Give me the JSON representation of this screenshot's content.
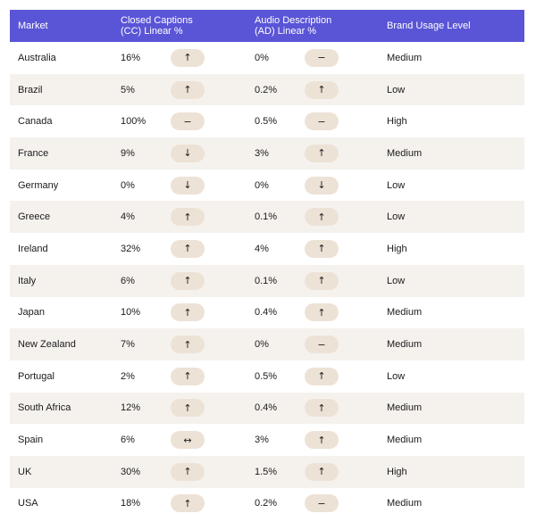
{
  "headers": {
    "market": "Market",
    "cc_line1": "Closed Captions",
    "cc_line2": "(CC) Linear %",
    "ad_line1": "Audio Description",
    "ad_line2": "(AD) Linear %",
    "brand": "Brand Usage Level"
  },
  "rows": [
    {
      "market": "Australia",
      "cc": "16%",
      "cc_trend": "↑",
      "ad": "0%",
      "ad_trend": "−",
      "brand": "Medium"
    },
    {
      "market": "Brazil",
      "cc": "5%",
      "cc_trend": "↑",
      "ad": "0.2%",
      "ad_trend": "↑",
      "brand": "Low"
    },
    {
      "market": "Canada",
      "cc": "100%",
      "cc_trend": "−",
      "ad": "0.5%",
      "ad_trend": "−",
      "brand": "High"
    },
    {
      "market": "France",
      "cc": "9%",
      "cc_trend": "↓",
      "ad": "3%",
      "ad_trend": "↑",
      "brand": "Medium"
    },
    {
      "market": "Germany",
      "cc": "0%",
      "cc_trend": "↓",
      "ad": "0%",
      "ad_trend": "↓",
      "brand": "Low"
    },
    {
      "market": "Greece",
      "cc": "4%",
      "cc_trend": "↑",
      "ad": "0.1%",
      "ad_trend": "↑",
      "brand": "Low"
    },
    {
      "market": "Ireland",
      "cc": "32%",
      "cc_trend": "↑",
      "ad": "4%",
      "ad_trend": "↑",
      "brand": "High"
    },
    {
      "market": "Italy",
      "cc": "6%",
      "cc_trend": "↑",
      "ad": "0.1%",
      "ad_trend": "↑",
      "brand": "Low"
    },
    {
      "market": "Japan",
      "cc": "10%",
      "cc_trend": "↑",
      "ad": "0.4%",
      "ad_trend": "↑",
      "brand": "Medium"
    },
    {
      "market": "New Zealand",
      "cc": "7%",
      "cc_trend": "↑",
      "ad": "0%",
      "ad_trend": "−",
      "brand": "Medium"
    },
    {
      "market": "Portugal",
      "cc": "2%",
      "cc_trend": "↑",
      "ad": "0.5%",
      "ad_trend": "↑",
      "brand": "Low"
    },
    {
      "market": "South Africa",
      "cc": "12%",
      "cc_trend": "↑",
      "ad": "0.4%",
      "ad_trend": "↑",
      "brand": "Medium"
    },
    {
      "market": "Spain",
      "cc": "6%",
      "cc_trend": "↔",
      "ad": "3%",
      "ad_trend": "↑",
      "brand": "Medium"
    },
    {
      "market": "UK",
      "cc": "30%",
      "cc_trend": "↑",
      "ad": "1.5%",
      "ad_trend": "↑",
      "brand": "High"
    },
    {
      "market": "USA",
      "cc": "18%",
      "cc_trend": "↑",
      "ad": "0.2%",
      "ad_trend": "−",
      "brand": "Medium"
    }
  ]
}
